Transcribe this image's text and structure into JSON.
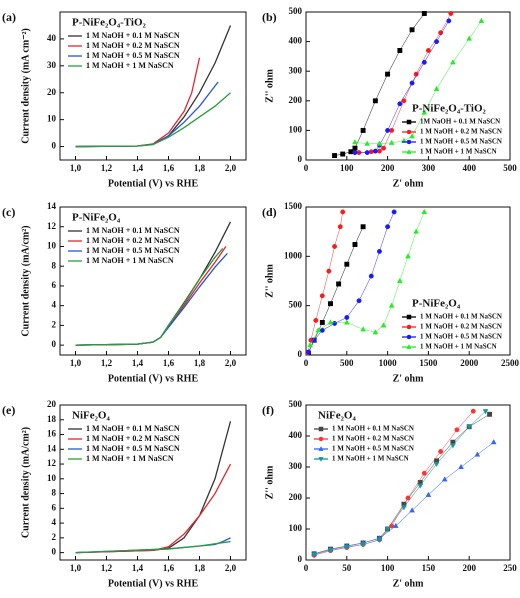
{
  "chart_data": [
    {
      "type": "line",
      "panel_label": "(a)",
      "title": "P-NiFe₂O₄-TiO₂",
      "title_color": "#1f1fd0",
      "x_label": "Potential (V) vs RHE",
      "y_label": "Current density (mA cm⁻²)",
      "xlim": [
        0.9,
        2.1
      ],
      "ylim": [
        -5,
        50
      ],
      "xticks": [
        {
          "value": 1.0,
          "label": "1,0"
        },
        {
          "value": 1.2,
          "label": "1,2"
        },
        {
          "value": 1.4,
          "label": "1,4"
        },
        {
          "value": 1.6,
          "label": "1,6"
        },
        {
          "value": 1.8,
          "label": "1,8"
        },
        {
          "value": 2.0,
          "label": "2,0"
        }
      ],
      "yticks": [
        0,
        10,
        20,
        30,
        40
      ],
      "legend": "upper left",
      "series": [
        {
          "name": "1 M NaOH + 0.1 M NaSCN",
          "color": "#333333",
          "x": [
            1.0,
            1.4,
            1.5,
            1.6,
            1.7,
            1.8,
            1.9,
            2.0
          ],
          "values": [
            0,
            0.2,
            0.8,
            4,
            11,
            20,
            31,
            45
          ]
        },
        {
          "name": "1 M NaOH + 0.2 M NaSCN",
          "color": "#e8242a",
          "x": [
            1.0,
            1.4,
            1.5,
            1.6,
            1.7,
            1.75,
            1.8
          ],
          "values": [
            0,
            0.2,
            1,
            5,
            13,
            20,
            33
          ]
        },
        {
          "name": "1 M NaOH + 0.5 M NaSCN",
          "color": "#2456d8",
          "x": [
            1.0,
            1.4,
            1.5,
            1.6,
            1.7,
            1.8,
            1.92
          ],
          "values": [
            0,
            0.2,
            0.8,
            4,
            9,
            15,
            24
          ]
        },
        {
          "name": "1 M NaOH + 1 M NaSCN",
          "color": "#2a9d3a",
          "x": [
            1.0,
            1.4,
            1.5,
            1.6,
            1.7,
            1.8,
            1.9,
            2.0
          ],
          "values": [
            0,
            0.2,
            0.7,
            3.5,
            7,
            11,
            15,
            20
          ]
        }
      ]
    },
    {
      "type": "scatter",
      "panel_label": "(b)",
      "title": "P-NiFe₂O₄-TiO₂",
      "title_color": "#1f1fd0",
      "x_label": "Z' ohm",
      "y_label": "Z'' ohm",
      "xlim": [
        0,
        500
      ],
      "ylim": [
        0,
        500
      ],
      "xticks": [
        0,
        100,
        200,
        300,
        400,
        500
      ],
      "yticks": [
        0,
        100,
        200,
        300,
        400,
        500
      ],
      "legend": "lower right",
      "series": [
        {
          "name": "1M NaOH + 0.1 M NaSCN",
          "color": "#000000",
          "marker": "square",
          "x": [
            70,
            90,
            110,
            120,
            140,
            170,
            200,
            230,
            260,
            290
          ],
          "values": [
            15,
            20,
            28,
            40,
            100,
            200,
            290,
            370,
            440,
            495
          ]
        },
        {
          "name": "1 M NaOH + 0.2 M NaSCN",
          "color": "#ff1a1a",
          "marker": "circle",
          "x": [
            130,
            160,
            180,
            190,
            210,
            240,
            270,
            300,
            330,
            355
          ],
          "values": [
            25,
            28,
            30,
            40,
            100,
            200,
            290,
            370,
            430,
            495
          ]
        },
        {
          "name": "1 M NaOH + 0.5 M NaSCN",
          "color": "#1a1aff",
          "marker": "circle",
          "x": [
            120,
            150,
            170,
            180,
            200,
            230,
            260,
            290,
            320,
            350
          ],
          "values": [
            25,
            25,
            30,
            50,
            100,
            190,
            260,
            330,
            400,
            470
          ]
        },
        {
          "name": "1 M NaOH + 1 M NaSCN",
          "color": "#22ee22",
          "marker": "triangle-up",
          "x": [
            120,
            150,
            180,
            210,
            240,
            260,
            290,
            320,
            360,
            400,
            430
          ],
          "values": [
            60,
            55,
            55,
            58,
            65,
            80,
            160,
            240,
            330,
            410,
            470
          ]
        }
      ]
    },
    {
      "type": "line",
      "panel_label": "(c)",
      "title": "P-NiFe₂O₄",
      "title_color": "#000000",
      "x_label": "Potential (V) vs RHE",
      "y_label": "Current density (mA/cm²)",
      "xlim": [
        0.9,
        2.1
      ],
      "ylim": [
        -1,
        14
      ],
      "xticks": [
        {
          "value": 1.0,
          "label": "1,0"
        },
        {
          "value": 1.2,
          "label": "1,2"
        },
        {
          "value": 1.4,
          "label": "1,4"
        },
        {
          "value": 1.6,
          "label": "1,6"
        },
        {
          "value": 1.8,
          "label": "1,8"
        },
        {
          "value": 2.0,
          "label": "2,0"
        }
      ],
      "yticks": [
        0,
        2,
        4,
        6,
        8,
        10,
        12,
        14
      ],
      "legend": "upper left",
      "series": [
        {
          "name": "1 M NaOH + 0.1 M NaSCN",
          "color": "#333333",
          "x": [
            1.0,
            1.4,
            1.5,
            1.55,
            1.6,
            1.7,
            1.8,
            1.9,
            2.0
          ],
          "values": [
            0,
            0.1,
            0.3,
            0.8,
            2,
            4.3,
            6.7,
            9.4,
            12.5
          ]
        },
        {
          "name": "1 M NaOH + 0.2 M NaSCN",
          "color": "#e8242a",
          "x": [
            1.0,
            1.4,
            1.5,
            1.55,
            1.6,
            1.7,
            1.8,
            1.9,
            1.97
          ],
          "values": [
            0,
            0.1,
            0.3,
            0.8,
            1.9,
            4,
            6.3,
            8.4,
            10
          ]
        },
        {
          "name": "1 M NaOH + 0.5 M NaSCN",
          "color": "#2456d8",
          "x": [
            1.0,
            1.4,
            1.5,
            1.55,
            1.6,
            1.7,
            1.8,
            1.9,
            1.98
          ],
          "values": [
            0,
            0.1,
            0.3,
            0.8,
            1.8,
            3.8,
            5.9,
            7.9,
            9.3
          ]
        },
        {
          "name": "1 M NaOH + 1 M NaSCN",
          "color": "#2a9d3a",
          "x": [
            1.0,
            1.4,
            1.5,
            1.55,
            1.6,
            1.7,
            1.8,
            1.9,
            1.95
          ],
          "values": [
            0,
            0.1,
            0.3,
            0.8,
            2,
            4.2,
            6.7,
            8.9,
            9.8
          ]
        }
      ]
    },
    {
      "type": "scatter",
      "panel_label": "(d)",
      "title": "P-NiFe₂O₄",
      "title_color": "#000000",
      "x_label": "Z' ohm",
      "y_label": "Z'' ohm",
      "xlim": [
        0,
        2500
      ],
      "ylim": [
        0,
        1500
      ],
      "xticks": [
        0,
        500,
        1000,
        1500,
        2000,
        2500
      ],
      "yticks": [
        0,
        500,
        1000,
        1500
      ],
      "legend": "lower right",
      "series": [
        {
          "name": "1 M NaOH + 0.1 M NaSCN",
          "color": "#000000",
          "marker": "square",
          "x": [
            30,
            100,
            200,
            300,
            400,
            500,
            600,
            700
          ],
          "values": [
            20,
            150,
            330,
            520,
            720,
            920,
            1120,
            1300
          ]
        },
        {
          "name": "1 M NaOH + 0.2 M NaSCN",
          "color": "#ff1a1a",
          "marker": "circle",
          "x": [
            20,
            60,
            120,
            200,
            280,
            350,
            420,
            450
          ],
          "values": [
            20,
            150,
            350,
            600,
            850,
            1100,
            1300,
            1450
          ]
        },
        {
          "name": "1 M NaOH + 0.5 M NaSCN",
          "color": "#1a1aff",
          "marker": "circle",
          "x": [
            30,
            100,
            200,
            350,
            500,
            650,
            800,
            900,
            1000,
            1080
          ],
          "values": [
            30,
            150,
            250,
            320,
            380,
            550,
            800,
            1050,
            1300,
            1450
          ]
        },
        {
          "name": "1 M NaOH + 1 M NaSCN",
          "color": "#22ee22",
          "marker": "triangle-up",
          "x": [
            50,
            150,
            300,
            500,
            700,
            850,
            950,
            1050,
            1150,
            1250,
            1350,
            1450
          ],
          "values": [
            100,
            250,
            330,
            330,
            260,
            230,
            300,
            500,
            750,
            1000,
            1250,
            1450
          ]
        }
      ]
    },
    {
      "type": "line",
      "panel_label": "(e)",
      "title": "NiFe₂O₄",
      "title_color": "#ff1a1a",
      "x_label": "Potential (V) vs RHE",
      "y_label": "Current density (mA/cm²)",
      "xlim": [
        0.9,
        2.1
      ],
      "ylim": [
        -1,
        20
      ],
      "xticks": [
        {
          "value": 1.0,
          "label": "1,0"
        },
        {
          "value": 1.2,
          "label": "1,2"
        },
        {
          "value": 1.4,
          "label": "1,4"
        },
        {
          "value": 1.6,
          "label": "1,6"
        },
        {
          "value": 1.8,
          "label": "1,8"
        },
        {
          "value": 2.0,
          "label": "2,0"
        }
      ],
      "yticks": [
        0,
        2,
        4,
        6,
        8,
        10,
        12,
        14,
        16,
        18,
        20
      ],
      "legend": "upper left",
      "series": [
        {
          "name": "1 M NaOH + 0.1 M NaSCN",
          "color": "#333333",
          "x": [
            1.0,
            1.5,
            1.6,
            1.7,
            1.8,
            1.9,
            2.0
          ],
          "values": [
            0,
            0.3,
            0.6,
            2,
            5,
            10,
            17.8
          ]
        },
        {
          "name": "1 M NaOH + 0.2 M NaSCN",
          "color": "#e8242a",
          "x": [
            1.0,
            1.5,
            1.6,
            1.7,
            1.8,
            1.9,
            2.0
          ],
          "values": [
            0,
            0.3,
            0.8,
            2.5,
            5,
            8,
            12
          ]
        },
        {
          "name": "1 M NaOH + 0.5 M NaSCN",
          "color": "#2456d8",
          "x": [
            1.0,
            1.6,
            1.8,
            1.9,
            1.95,
            2.0
          ],
          "values": [
            0,
            0.5,
            0.9,
            1.1,
            1.5,
            2
          ]
        },
        {
          "name": "1 M NaOH + 1 M NaSCN",
          "color": "#2a9d3a",
          "x": [
            1.0,
            1.6,
            1.8,
            2.0
          ],
          "values": [
            0,
            0.5,
            0.9,
            1.5
          ]
        }
      ]
    },
    {
      "type": "scatter",
      "panel_label": "(f)",
      "title": "NiFe₂O₄",
      "title_color": "#ff1a1a",
      "x_label": "Z' ohm",
      "y_label": "Z'' ohm",
      "xlim": [
        0,
        250
      ],
      "ylim": [
        0,
        500
      ],
      "xticks": [
        0,
        50,
        100,
        150,
        200,
        250
      ],
      "yticks": [
        0,
        100,
        200,
        300,
        400,
        500
      ],
      "legend": "upper left",
      "series": [
        {
          "name": "1 M NaOH + 0.1 M NaSCN",
          "color": "#444444",
          "marker": "square",
          "x": [
            10,
            30,
            50,
            70,
            90,
            100,
            120,
            140,
            160,
            180,
            200,
            225
          ],
          "values": [
            20,
            35,
            45,
            55,
            70,
            100,
            180,
            250,
            320,
            380,
            430,
            470
          ]
        },
        {
          "name": "1 M NaOH + 0.2 M NaSCN",
          "color": "#ff3333",
          "marker": "circle",
          "x": [
            10,
            30,
            50,
            70,
            90,
            105,
            125,
            145,
            165,
            185,
            205
          ],
          "values": [
            15,
            30,
            40,
            50,
            65,
            110,
            200,
            280,
            350,
            420,
            480
          ]
        },
        {
          "name": "1 M NaOH + 0.5 M NaSCN",
          "color": "#3366ff",
          "marker": "triangle-up",
          "x": [
            10,
            30,
            50,
            70,
            90,
            110,
            130,
            150,
            170,
            190,
            210,
            230
          ],
          "values": [
            20,
            35,
            45,
            55,
            70,
            110,
            160,
            210,
            260,
            300,
            340,
            380
          ]
        },
        {
          "name": "1 M NaOH + 1 M NaSCN",
          "color": "#119999",
          "marker": "triangle-down",
          "x": [
            10,
            30,
            50,
            70,
            90,
            100,
            120,
            140,
            160,
            180,
            200,
            220
          ],
          "values": [
            18,
            32,
            42,
            50,
            65,
            100,
            170,
            240,
            310,
            370,
            430,
            480
          ]
        }
      ]
    }
  ]
}
